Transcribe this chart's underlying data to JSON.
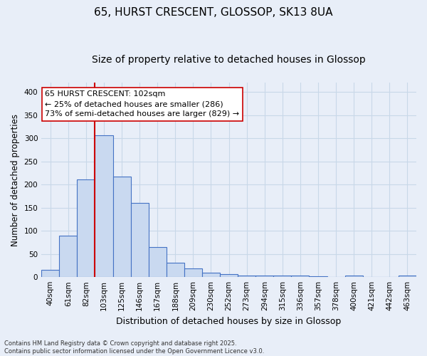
{
  "title": "65, HURST CRESCENT, GLOSSOP, SK13 8UA",
  "subtitle": "Size of property relative to detached houses in Glossop",
  "xlabel": "Distribution of detached houses by size in Glossop",
  "ylabel": "Number of detached properties",
  "bin_labels": [
    "40sqm",
    "61sqm",
    "82sqm",
    "103sqm",
    "125sqm",
    "146sqm",
    "167sqm",
    "188sqm",
    "209sqm",
    "230sqm",
    "252sqm",
    "273sqm",
    "294sqm",
    "315sqm",
    "336sqm",
    "357sqm",
    "378sqm",
    "400sqm",
    "421sqm",
    "442sqm",
    "463sqm"
  ],
  "bar_values": [
    15,
    90,
    211,
    307,
    217,
    160,
    65,
    31,
    18,
    9,
    6,
    3,
    3,
    3,
    3,
    2,
    1,
    3,
    1,
    1,
    3
  ],
  "bar_color": "#c9d9f0",
  "bar_edge_color": "#4472c4",
  "vline_bin_index": 3,
  "vline_color": "#cc0000",
  "annotation_text": "65 HURST CRESCENT: 102sqm\n← 25% of detached houses are smaller (286)\n73% of semi-detached houses are larger (829) →",
  "annotation_box_color": "#ffffff",
  "annotation_box_edge_color": "#cc0000",
  "annotation_fontsize": 8.0,
  "ylim": [
    0,
    420
  ],
  "yticks": [
    0,
    50,
    100,
    150,
    200,
    250,
    300,
    350,
    400
  ],
  "grid_color": "#c8d8e8",
  "bg_color": "#e8eef8",
  "fig_bg_color": "#e8eef8",
  "title_fontsize": 11,
  "subtitle_fontsize": 10,
  "xlabel_fontsize": 9,
  "ylabel_fontsize": 8.5,
  "tick_fontsize": 7.5,
  "footnote": "Contains HM Land Registry data © Crown copyright and database right 2025.\nContains public sector information licensed under the Open Government Licence v3.0.",
  "footnote_fontsize": 6.0
}
